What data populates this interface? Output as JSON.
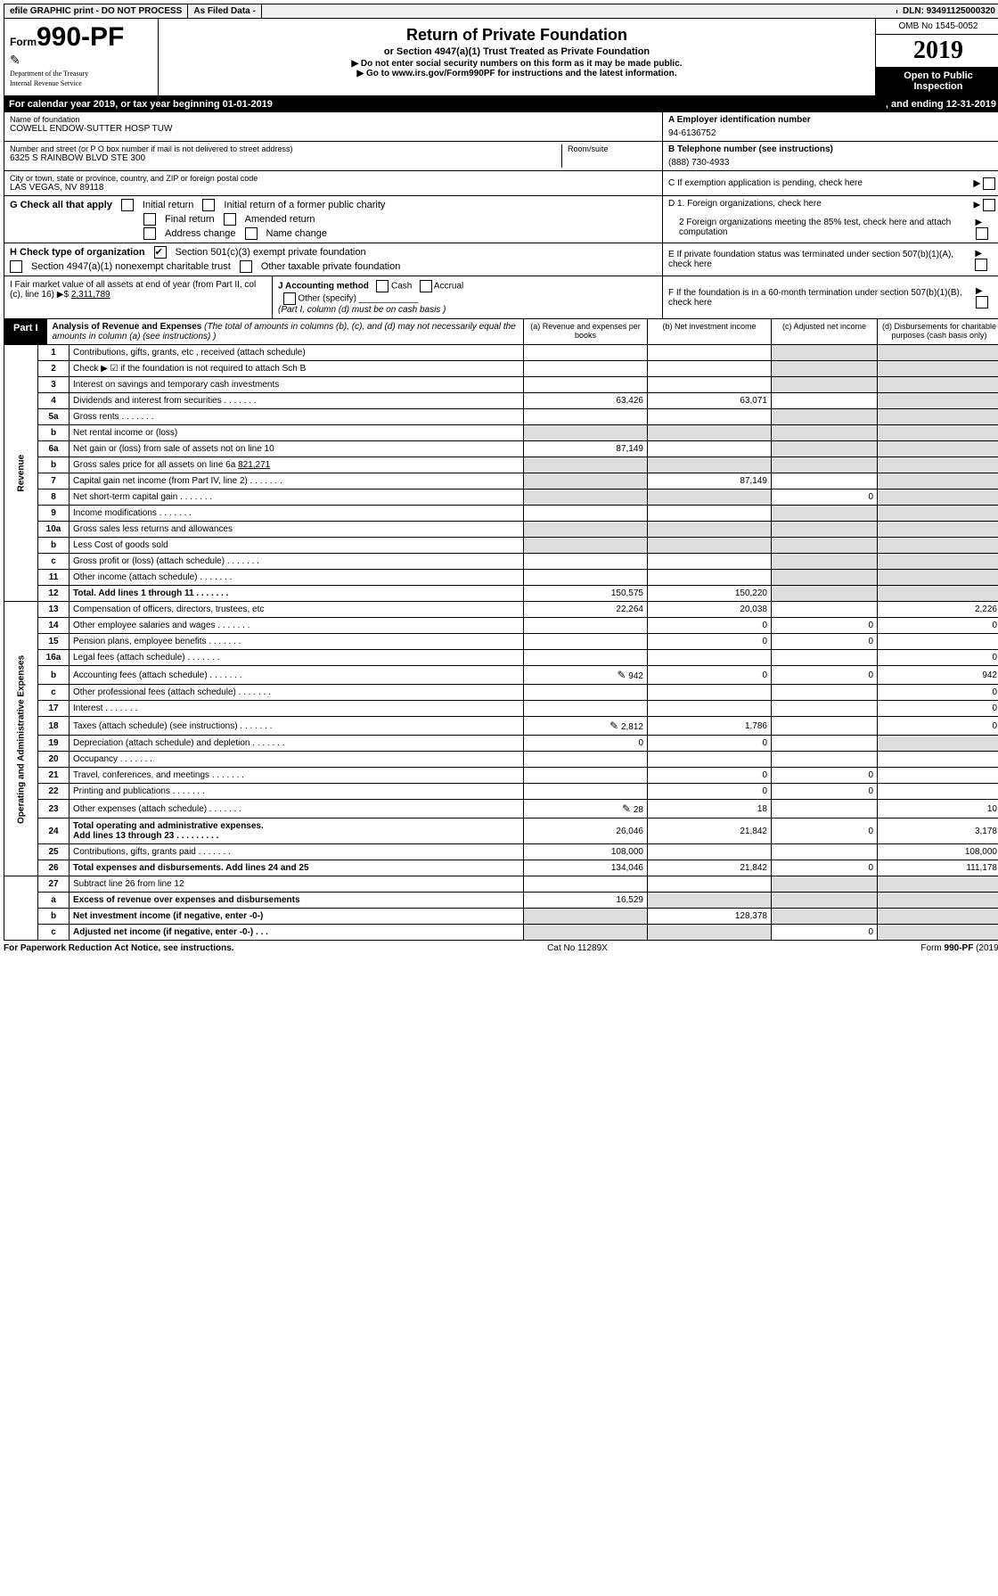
{
  "top": {
    "efile": "efile GRAPHIC print - DO NOT PROCESS",
    "asfiled": "As Filed Data -",
    "dln": "DLN: 93491125000320"
  },
  "header": {
    "form_prefix": "Form",
    "form_no": "990-PF",
    "dept": "Department of the Treasury",
    "irs": "Internal Revenue Service",
    "title": "Return of Private Foundation",
    "sub": "or Section 4947(a)(1) Trust Treated as Private Foundation",
    "note1": "▶ Do not enter social security numbers on this form as it may be made public.",
    "note2": "▶ Go to www.irs.gov/Form990PF for instructions and the latest information.",
    "omb": "OMB No 1545-0052",
    "year": "2019",
    "otp": "Open to Public Inspection"
  },
  "cal": {
    "text": "For calendar year 2019, or tax year beginning 01-01-2019",
    "ending": ", and ending 12-31-2019"
  },
  "info": {
    "name_label": "Name of foundation",
    "name": "COWELL ENDOW-SUTTER HOSP TUW",
    "a_label": "A Employer identification number",
    "a_val": "94-6136752",
    "addr_label": "Number and street (or P O  box number if mail is not delivered to street address)",
    "addr": "6325 S RAINBOW BLVD STE 300",
    "room": "Room/suite",
    "b_label": "B Telephone number (see instructions)",
    "b_val": "(888) 730-4933",
    "city_label": "City or town, state or province, country, and ZIP or foreign postal code",
    "city": "LAS VEGAS, NV  89118",
    "c_label": "C If exemption application is pending, check here"
  },
  "g": {
    "label": "G Check all that apply",
    "o1": "Initial return",
    "o2": "Initial return of a former public charity",
    "o3": "Final return",
    "o4": "Amended return",
    "o5": "Address change",
    "o6": "Name change"
  },
  "h": {
    "label": "H Check type of organization",
    "o1": "Section 501(c)(3) exempt private foundation",
    "o2": "Section 4947(a)(1) nonexempt charitable trust",
    "o3": "Other taxable private foundation"
  },
  "i": {
    "label": "I Fair market value of all assets at end of year (from Part II, col  (c), line 16)  ▶$",
    "val": "2,311,789"
  },
  "j": {
    "label": "J Accounting method",
    "cash": "Cash",
    "accrual": "Accrual",
    "other": "Other (specify)",
    "note": "(Part I, column (d) must be on cash basis )"
  },
  "de": {
    "d1": "D 1. Foreign organizations, check here",
    "d2": "2 Foreign organizations meeting the 85% test, check here and attach computation",
    "e": "E  If private foundation status was terminated under section 507(b)(1)(A), check here",
    "f": "F  If the foundation is in a 60-month termination under section 507(b)(1)(B), check here"
  },
  "part1": {
    "label": "Part I",
    "title": "Analysis of Revenue and Expenses",
    "desc": "(The total of amounts in columns (b), (c), and (d) may not necessarily equal the amounts in column (a) (see instructions) )",
    "col_a": "(a) Revenue and expenses per books",
    "col_b": "(b) Net investment income",
    "col_c": "(c) Adjusted net income",
    "col_d": "(d) Disbursements for charitable purposes (cash basis only)",
    "revenue_label": "Revenue",
    "expenses_label": "Operating and Administrative Expenses"
  },
  "rows": {
    "r1": {
      "n": "1",
      "d": "Contributions, gifts, grants, etc , received (attach schedule)"
    },
    "r2": {
      "n": "2",
      "d": "Check ▶ ☑ if the foundation is not required to attach Sch B"
    },
    "r3": {
      "n": "3",
      "d": "Interest on savings and temporary cash investments"
    },
    "r4": {
      "n": "4",
      "d": "Dividends and interest from securities",
      "a": "63,426",
      "b": "63,071"
    },
    "r5a": {
      "n": "5a",
      "d": "Gross rents"
    },
    "r5b": {
      "n": "b",
      "d": "Net rental income or (loss)"
    },
    "r6a": {
      "n": "6a",
      "d": "Net gain or (loss) from sale of assets not on line 10",
      "a": "87,149"
    },
    "r6b": {
      "n": "b",
      "d": "Gross sales price for all assets on line 6a",
      "v": "821,271"
    },
    "r7": {
      "n": "7",
      "d": "Capital gain net income (from Part IV, line 2)",
      "b": "87,149"
    },
    "r8": {
      "n": "8",
      "d": "Net short-term capital gain",
      "c": "0"
    },
    "r9": {
      "n": "9",
      "d": "Income modifications"
    },
    "r10a": {
      "n": "10a",
      "d": "Gross sales less returns and allowances"
    },
    "r10b": {
      "n": "b",
      "d": "Less  Cost of goods sold"
    },
    "r10c": {
      "n": "c",
      "d": "Gross profit or (loss) (attach schedule)"
    },
    "r11": {
      "n": "11",
      "d": "Other income (attach schedule)"
    },
    "r12": {
      "n": "12",
      "d": "Total. Add lines 1 through 11",
      "a": "150,575",
      "b": "150,220"
    },
    "r13": {
      "n": "13",
      "d": "Compensation of officers, directors, trustees, etc",
      "a": "22,264",
      "b": "20,038",
      "dd": "2,226"
    },
    "r14": {
      "n": "14",
      "d": "Other employee salaries and wages",
      "a": "",
      "b": "0",
      "c": "0",
      "dd": "0"
    },
    "r15": {
      "n": "15",
      "d": "Pension plans, employee benefits",
      "b": "0",
      "c": "0"
    },
    "r16a": {
      "n": "16a",
      "d": "Legal fees (attach schedule)",
      "dd": "0"
    },
    "r16b": {
      "n": "b",
      "d": "Accounting fees (attach schedule)",
      "a": "942",
      "b": "0",
      "c": "0",
      "dd": "942",
      "icon": true
    },
    "r16c": {
      "n": "c",
      "d": "Other professional fees (attach schedule)",
      "dd": "0"
    },
    "r17": {
      "n": "17",
      "d": "Interest",
      "dd": "0"
    },
    "r18": {
      "n": "18",
      "d": "Taxes (attach schedule) (see instructions)",
      "a": "2,812",
      "b": "1,786",
      "dd": "0",
      "icon": true
    },
    "r19": {
      "n": "19",
      "d": "Depreciation (attach schedule) and depletion",
      "a": "0",
      "b": "0"
    },
    "r20": {
      "n": "20",
      "d": "Occupancy"
    },
    "r21": {
      "n": "21",
      "d": "Travel, conferences, and meetings",
      "b": "0",
      "c": "0"
    },
    "r22": {
      "n": "22",
      "d": "Printing and publications",
      "b": "0",
      "c": "0"
    },
    "r23": {
      "n": "23",
      "d": "Other expenses (attach schedule)",
      "a": "28",
      "b": "18",
      "dd": "10",
      "icon": true
    },
    "r24": {
      "n": "24",
      "d": "Total operating and administrative expenses.",
      "d2": "Add lines 13 through 23",
      "a": "26,046",
      "b": "21,842",
      "c": "0",
      "dd": "3,178"
    },
    "r25": {
      "n": "25",
      "d": "Contributions, gifts, grants paid",
      "a": "108,000",
      "dd": "108,000"
    },
    "r26": {
      "n": "26",
      "d": "Total expenses and disbursements. Add lines 24 and 25",
      "a": "134,046",
      "b": "21,842",
      "c": "0",
      "dd": "111,178"
    },
    "r27": {
      "n": "27",
      "d": "Subtract line 26 from line 12"
    },
    "r27a": {
      "n": "a",
      "d": "Excess of revenue over expenses and disbursements",
      "a": "16,529"
    },
    "r27b": {
      "n": "b",
      "d": "Net investment income (if negative, enter -0-)",
      "b": "128,378"
    },
    "r27c": {
      "n": "c",
      "d": "Adjusted net income (if negative, enter -0-)",
      "c": "0"
    }
  },
  "footer": {
    "left": "For Paperwork Reduction Act Notice, see instructions.",
    "mid": "Cat  No  11289X",
    "right": "Form 990-PF (2019)"
  }
}
